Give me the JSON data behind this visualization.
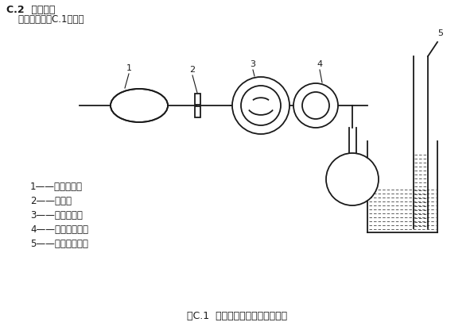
{
  "title_main": "C.2  试验装置",
  "subtitle": "    试验装置如图C.1所示：",
  "figure_caption": "图C.1  超压排气阀气密性试验装置",
  "legend_items": [
    "1——抽气手球；",
    "2——夹子；",
    "3——定容腔体；",
    "4——超压排气阀；",
    "5——水柱压力计。"
  ],
  "bg_color": "#ffffff",
  "line_color": "#1a1a1a"
}
